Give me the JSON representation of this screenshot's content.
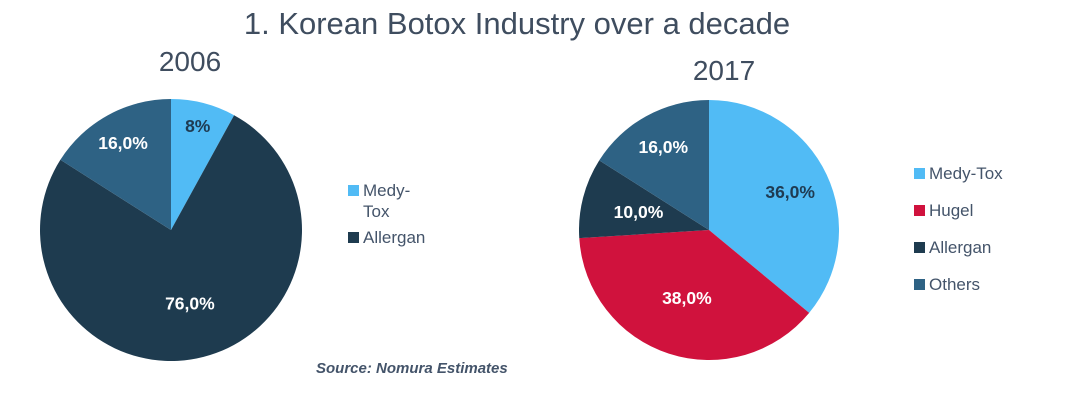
{
  "title": "1. Korean Botox Industry over a decade",
  "source_note": "Source: Nomura Estimates",
  "text_color": "#3f4d5f",
  "chart_data": [
    {
      "type": "pie",
      "title": "2006",
      "unit": "%",
      "legend_position": "right",
      "slices": [
        {
          "name": "Medy-Tox",
          "value": 8,
          "label": "8%",
          "color": "#51bbf5",
          "label_color": "#1f3b52",
          "label_r": 0.82
        },
        {
          "name": "Allergan",
          "value": 76,
          "label": "76,0%",
          "color": "#1e3b4f",
          "label_color": "#ffffff",
          "label_r": 0.58
        },
        {
          "name": "Others",
          "value": 16,
          "label": "16,0%",
          "color": "#2e6284",
          "label_color": "#ffffff",
          "label_r": 0.76
        }
      ],
      "legend": [
        {
          "label": "Medy-Tox",
          "color": "#51bbf5"
        },
        {
          "label": "Allergan",
          "color": "#1e3b4f"
        }
      ]
    },
    {
      "type": "pie",
      "title": "2017",
      "unit": "%",
      "legend_position": "right",
      "slices": [
        {
          "name": "Medy-Tox",
          "value": 36,
          "label": "36,0%",
          "color": "#51bbf5",
          "label_color": "#1f3b52",
          "label_r": 0.69
        },
        {
          "name": "Hugel",
          "value": 38,
          "label": "38,0%",
          "color": "#d0123d",
          "label_color": "#ffffff",
          "label_r": 0.55
        },
        {
          "name": "Allergan",
          "value": 10,
          "label": "10,0%",
          "color": "#1e3b4f",
          "label_color": "#ffffff",
          "label_r": 0.56
        },
        {
          "name": "Others",
          "value": 16,
          "label": "16,0%",
          "color": "#2e6284",
          "label_color": "#ffffff",
          "label_r": 0.73
        }
      ],
      "legend": [
        {
          "label": "Medy-Tox",
          "color": "#51bbf5"
        },
        {
          "label": "Hugel",
          "color": "#d0123d"
        },
        {
          "label": "Allergan",
          "color": "#1e3b4f"
        },
        {
          "label": "Others",
          "color": "#2e6284"
        }
      ]
    }
  ]
}
